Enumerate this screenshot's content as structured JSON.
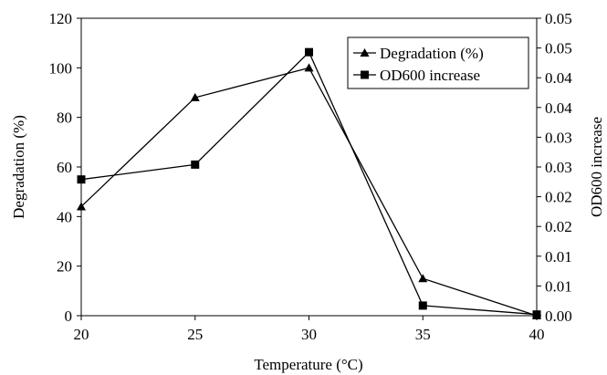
{
  "chart_data": {
    "type": "line",
    "title": "",
    "xlabel": "Temperature (°C)",
    "ylabel": "Degradation (%)",
    "y2label": "OD600 increase",
    "x": [
      20,
      25,
      30,
      35,
      40
    ],
    "xlim": [
      20,
      40
    ],
    "ylim": [
      0,
      120
    ],
    "y2lim": [
      0,
      0.05
    ],
    "x_ticks": [
      "20",
      "25",
      "30",
      "35",
      "40"
    ],
    "y_ticks": [
      "0",
      "20",
      "40",
      "60",
      "80",
      "100",
      "120"
    ],
    "y2_ticks": [
      "0.00",
      "0.01",
      "0.01",
      "0.02",
      "0.02",
      "0.03",
      "0.03",
      "0.04",
      "0.04",
      "0.05",
      "0.05"
    ],
    "grid": false,
    "legend_position": "top-right",
    "series": [
      {
        "name": "Degradation (%)",
        "axis": "left",
        "marker": "triangle",
        "color": "#000000",
        "values": [
          44,
          88,
          100,
          15,
          0
        ]
      },
      {
        "name": "OD600 increase",
        "axis": "right",
        "marker": "square",
        "color": "#000000",
        "values": [
          0.0229,
          0.0254,
          0.0443,
          0.0017,
          0.0002
        ]
      }
    ]
  }
}
